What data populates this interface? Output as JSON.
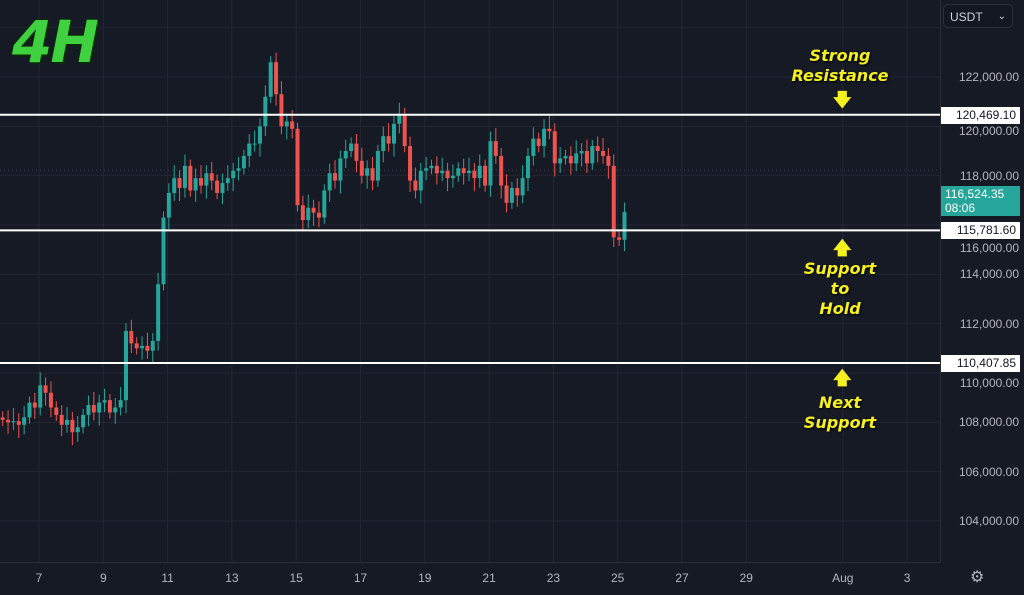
{
  "timeframe_label": "4H",
  "currency_selector": {
    "value": "USDT"
  },
  "current_price": {
    "value": "116,524.35",
    "countdown": "08:06",
    "color": "#26a69a"
  },
  "levels": [
    {
      "label": "120,469.10",
      "price": 120469.1
    },
    {
      "label": "115,781.60",
      "price": 115781.6
    },
    {
      "label": "110,407.85",
      "price": 110407.85
    }
  ],
  "annotations": {
    "resistance": [
      "Strong",
      "Resistance"
    ],
    "support": [
      "Support",
      "to",
      "Hold"
    ],
    "next_support": [
      "Next",
      "Support"
    ]
  },
  "chart_data": {
    "type": "candlestick",
    "interval": "4H",
    "ylim": [
      103000,
      124500
    ],
    "y_ticks": [
      {
        "value": 122000,
        "label": "122,000.00"
      },
      {
        "value": 120000,
        "label": "120,000.00"
      },
      {
        "value": 118000,
        "label": "118,000.00"
      },
      {
        "value": 116000,
        "label": "116,000.00"
      },
      {
        "value": 114000,
        "label": "114,000.00"
      },
      {
        "value": 112000,
        "label": "112,000.00"
      },
      {
        "value": 110000,
        "label": "110,000.00"
      },
      {
        "value": 108000,
        "label": "108,000.00"
      },
      {
        "value": 106000,
        "label": "106,000.00"
      },
      {
        "value": 104000,
        "label": "104,000.00"
      }
    ],
    "x_ticks": [
      "7",
      "9",
      "11",
      "13",
      "15",
      "17",
      "19",
      "21",
      "23",
      "25",
      "27",
      "29",
      "Aug",
      "3"
    ],
    "grid": true,
    "up_color": "#26a69a",
    "down_color": "#ef5350",
    "close": [
      108100,
      108000,
      108050,
      107900,
      108200,
      108800,
      108600,
      109500,
      109200,
      108600,
      108300,
      107900,
      108100,
      107600,
      107800,
      108300,
      108700,
      108400,
      108800,
      108900,
      108400,
      108600,
      108900,
      111700,
      111200,
      111000,
      111100,
      110900,
      111300,
      113600,
      116300,
      117300,
      117900,
      117500,
      118400,
      117400,
      117900,
      117600,
      118100,
      117800,
      117300,
      117700,
      117900,
      118200,
      118300,
      118800,
      119300,
      119300,
      120000,
      121200,
      122600,
      121300,
      120000,
      120200,
      119900,
      116800,
      116200,
      116700,
      116500,
      116300,
      117400,
      118100,
      117800,
      118700,
      119000,
      119300,
      118600,
      118000,
      118300,
      117800,
      119000,
      119600,
      119300,
      120100,
      120500,
      119200,
      117800,
      117400,
      118200,
      118300,
      118400,
      118100,
      118200,
      117900,
      118000,
      118300,
      118100,
      118200,
      117900,
      118400,
      117600,
      119400,
      118800,
      117600,
      116900,
      117500,
      117200,
      117900,
      118800,
      119500,
      119200,
      119900,
      119800,
      118500,
      118700,
      118800,
      118500,
      118900,
      119000,
      118500,
      119200,
      119000,
      118800,
      118400,
      115500,
      115400,
      116524
    ]
  }
}
